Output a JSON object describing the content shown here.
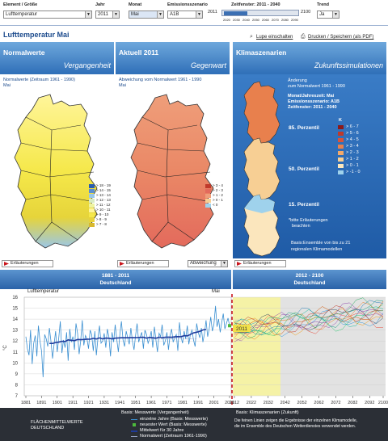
{
  "controls": {
    "element_label": "Element / Größe",
    "element_value": "Lufttemperatur",
    "year_label": "Jahr",
    "year_value": "2011",
    "month_label": "Monat",
    "month_value": "Mai",
    "scenario_label": "Emissionsszenario",
    "scenario_value": "A1B",
    "window_label": "Zeitfenster: 2011 - 2040",
    "window_start": "2011",
    "window_end": "2100",
    "window_ticks": [
      "2020",
      "2030",
      "2040",
      "2050",
      "2060",
      "2070",
      "2080",
      "2090"
    ],
    "trend_label": "Trend",
    "trend_value": "Ja"
  },
  "page_title": "Lufttemperatur Mai",
  "toolbar": {
    "zoom": "Lupe einschalten",
    "print": "Drucken / Speichern (als PDF)"
  },
  "panels": {
    "normal": {
      "title": "Normalwerte",
      "subtitle": "Vergangenheit",
      "desc": "Normalwerte (Zeitraum 1961 - 1990)",
      "month": "Mai",
      "legend": [
        "> 18 - 19",
        "> 14 - 15",
        "> 13 - 14",
        "> 12 - 13",
        "> 11 - 12",
        "> 10 - 11",
        "> 9 - 10",
        "> 8 - 9",
        "> 7 - 8",
        "> 6 - 7",
        "> 5 - 6",
        "< 5"
      ]
    },
    "current": {
      "title": "Aktuell 2011",
      "subtitle": "Gegenwart",
      "desc": "Abweichung vom Normalwert 1961 - 1990",
      "month": "Mai",
      "legend": [
        "> 3 - 4",
        "> 2 - 3",
        "> 1 - 2",
        "> 0 - 1",
        "< 0"
      ]
    },
    "scenario": {
      "title": "Klimaszenarien",
      "subtitle": "Zukunftssimulationen",
      "l1": "Änderung",
      "l2": "zum Normalwert 1961 - 1990",
      "l3": "Monat/Jahreszeit: Mai",
      "l4": "Emissionsszenario: A1B",
      "l5": "Zeitfenster: 2011 - 2040",
      "k_label": "K",
      "p85": "85. Perzentil",
      "p50": "50. Perzentil",
      "p15": "15. Perzentil",
      "note1": "*bitte Erläuterungen",
      "note2": "beachten",
      "basis1": "Basis:Ensemble von bis zu 21",
      "basis2": "regionalen Klimamodellen",
      "legend": [
        "> 6 - 7",
        "> 5 - 6",
        "> 4 - 5",
        "> 3 - 4",
        "> 2 - 3",
        "> 1 - 2",
        "> 0 - 1",
        "> -1 - 0"
      ],
      "legend_colors": [
        "#8b1a1a",
        "#c0392b",
        "#d9533a",
        "#e8804d",
        "#f2a96a",
        "#f7cf94",
        "#fbe6bd",
        "#9fd2ec"
      ]
    }
  },
  "buttons": {
    "erl1": "Erläuterungen",
    "erl2": "Erläuterungen",
    "abweichung": "Abweichung",
    "erl3": "Erläuterungen"
  },
  "timeline": {
    "past_range": "1881 - 2011",
    "past_region": "Deutschland",
    "future_range": "2012 - 2100",
    "future_region": "Deutschland",
    "element": "Lufttemperatur",
    "month": "Mai",
    "marker": "2011"
  },
  "chart_data": {
    "type": "line",
    "xlabel": "",
    "ylabel": "°C",
    "ylim": [
      7,
      16
    ],
    "xlim": [
      1881,
      2100
    ],
    "y_ticks": [
      7,
      8,
      9,
      10,
      11,
      12,
      13,
      14,
      15,
      16
    ],
    "x_ticks_past": [
      "1881",
      "1891",
      "1901",
      "1911",
      "1921",
      "1931",
      "1941",
      "1951",
      "1961",
      "1971",
      "1981",
      "1991",
      "2001",
      "2011"
    ],
    "x_ticks_future": [
      "2012",
      "2022",
      "2032",
      "2042",
      "2052",
      "2062",
      "2072",
      "2082",
      "2092",
      "2100"
    ],
    "highlight_window": [
      2011,
      2040
    ],
    "series": [
      {
        "name": "einzelne Jahre (Basis: Messwerte)",
        "color": "#3a8fd1"
      },
      {
        "name": "neuester Wert (Basis: Messwerte)",
        "color": "#4cbb3c"
      },
      {
        "name": "Mittelwert für 30 Jahre",
        "color": "#1f3b9c"
      },
      {
        "name": "Normalwert (Zeitraum 1961-1990)",
        "color": "#9aa7c7"
      }
    ],
    "annual_values": [
      12.4,
      11.3,
      10.7,
      13.0,
      9.9,
      11.8,
      12.5,
      10.6,
      13.4,
      12.0,
      11.1,
      8.7,
      12.6,
      12.2,
      11.5,
      13.2,
      12.0,
      10.4,
      11.7,
      12.9,
      11.0,
      12.3,
      13.8,
      10.9,
      12.1,
      11.4,
      12.8,
      10.2,
      13.1,
      11.9,
      12.4,
      11.2,
      13.6,
      12.7,
      10.8,
      12.0,
      13.9,
      11.6,
      12.5,
      12.2,
      11.3,
      13.0,
      12.6,
      11.1,
      12.9,
      10.7,
      12.3,
      13.4,
      11.8,
      12.0,
      12.7,
      11.4,
      13.1,
      12.4,
      10.6,
      12.8,
      11.9,
      13.5,
      12.2,
      11.0,
      12.6,
      13.8,
      12.1,
      11.5,
      12.9,
      12.3,
      11.7,
      13.2,
      12.0,
      11.2,
      12.5,
      13.6,
      11.9,
      12.4,
      12.8,
      11.3,
      13.0,
      12.6,
      11.8,
      12.2,
      12.9,
      11.4,
      13.3,
      12.1,
      11.0,
      12.7,
      12.4,
      13.5,
      11.6,
      12.0,
      12.8,
      11.2,
      12.5,
      13.1,
      11.9,
      12.3,
      12.6,
      11.1,
      13.7,
      12.4,
      11.8,
      12.9,
      12.2,
      13.4,
      11.7,
      12.6,
      13.0,
      12.1,
      11.5,
      13.6,
      12.8,
      12.3,
      13.2,
      11.9,
      12.7,
      13.9,
      12.4,
      13.1,
      14.2,
      12.9,
      13.5,
      15.2,
      13.3,
      14.0,
      12.8,
      13.7,
      14.5,
      13.1,
      13.6,
      14.1,
      13.4
    ]
  },
  "footer": {
    "region_label": "FLÄCHENMITTELWERTE",
    "region_sub": "DEUTSCHLAND",
    "past_basis": "Basis: Messwerte (Vergangenheit)",
    "legend_annual": "einzelne Jahre (Basis: Messwerte)",
    "legend_latest": "neuester Wert (Basis: Messwerte)",
    "legend_mean30": "Mittelwert für 30 Jahre",
    "legend_normal": "Normalwert (Zeitraum 1961-1990)",
    "future_basis": "Basis: Klimaszenarien (Zukunft)",
    "future_text1": "Die feinen Linien zeigen die Ergebnisse der einzelnen Klimamodelle,",
    "future_text2": "die im Ensemble des Deutschen Wetterdienstes verwendet werden."
  }
}
